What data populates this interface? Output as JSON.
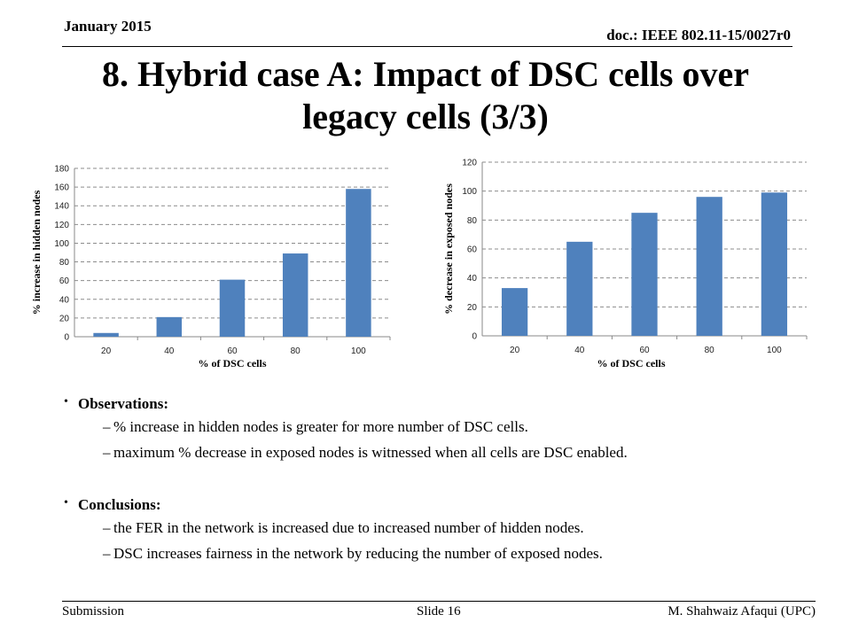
{
  "header": {
    "date": "January 2015",
    "doc": "doc.: IEEE 802.11-15/0027r0"
  },
  "slide": {
    "title_line1": "8. Hybrid case A: Impact of DSC cells over",
    "title_line2": "legacy cells (3/3)"
  },
  "chart_data": [
    {
      "type": "bar",
      "categories": [
        "20",
        "40",
        "60",
        "80",
        "100"
      ],
      "values": [
        4,
        21,
        61,
        89,
        158
      ],
      "xlabel": "% of DSC cells",
      "ylabel": "% increase in hidden nodes",
      "ylim": [
        0,
        180
      ],
      "yticks": [
        "0",
        "20",
        "40",
        "60",
        "80",
        "100",
        "120",
        "140",
        "160",
        "180"
      ],
      "grid": true,
      "bar_color": "#4f81bd"
    },
    {
      "type": "bar",
      "categories": [
        "20",
        "40",
        "60",
        "80",
        "100"
      ],
      "values": [
        33,
        65,
        85,
        96,
        99
      ],
      "xlabel": "% of DSC cells",
      "ylabel": "% decrease in exposed nodes",
      "ylim": [
        0,
        120
      ],
      "yticks": [
        "0",
        "20",
        "40",
        "60",
        "80",
        "100",
        "120"
      ],
      "grid": true,
      "bar_color": "#4f81bd"
    }
  ],
  "observations": {
    "heading": "Observations:",
    "items": [
      "% increase in hidden nodes is greater for more number of DSC cells.",
      "maximum % decrease in exposed nodes is witnessed when all cells  are DSC enabled."
    ]
  },
  "conclusions": {
    "heading": "Conclusions:",
    "items": [
      "the FER in the network is increased due to increased number of hidden nodes.",
      "DSC increases fairness in the network by reducing the number of exposed nodes."
    ]
  },
  "footer": {
    "left": "Submission",
    "center": "Slide 16",
    "right": "M. Shahwaiz Afaqui (UPC)"
  }
}
